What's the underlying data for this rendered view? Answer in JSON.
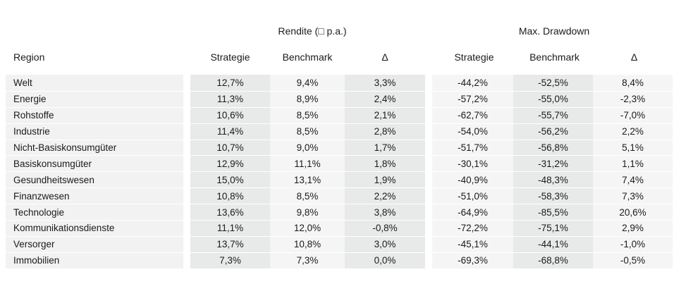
{
  "group_headers": {
    "rendite": "Rendite (□ p.a.)",
    "drawdown": "Max. Drawdown"
  },
  "column_headers": {
    "region": "Region",
    "rendite_strategie": "Strategie",
    "rendite_benchmark": "Benchmark",
    "rendite_delta": "Δ",
    "dd_strategie": "Strategie",
    "dd_benchmark": "Benchmark",
    "dd_delta": "Δ"
  },
  "rows": [
    {
      "region": "Welt",
      "r_strat": "12,7%",
      "r_bench": "9,4%",
      "r_delta": "3,3%",
      "d_strat": "-44,2%",
      "d_bench": "-52,5%",
      "d_delta": "8,4%"
    },
    {
      "region": "Energie",
      "r_strat": "11,3%",
      "r_bench": "8,9%",
      "r_delta": "2,4%",
      "d_strat": "-57,2%",
      "d_bench": "-55,0%",
      "d_delta": "-2,3%"
    },
    {
      "region": "Rohstoffe",
      "r_strat": "10,6%",
      "r_bench": "8,5%",
      "r_delta": "2,1%",
      "d_strat": "-62,7%",
      "d_bench": "-55,7%",
      "d_delta": "-7,0%"
    },
    {
      "region": "Industrie",
      "r_strat": "11,4%",
      "r_bench": "8,5%",
      "r_delta": "2,8%",
      "d_strat": "-54,0%",
      "d_bench": "-56,2%",
      "d_delta": "2,2%"
    },
    {
      "region": "Nicht-Basiskonsumgüter",
      "r_strat": "10,7%",
      "r_bench": "9,0%",
      "r_delta": "1,7%",
      "d_strat": "-51,7%",
      "d_bench": "-56,8%",
      "d_delta": "5,1%"
    },
    {
      "region": "Basiskonsumgüter",
      "r_strat": "12,9%",
      "r_bench": "11,1%",
      "r_delta": "1,8%",
      "d_strat": "-30,1%",
      "d_bench": "-31,2%",
      "d_delta": "1,1%"
    },
    {
      "region": "Gesundheitswesen",
      "r_strat": "15,0%",
      "r_bench": "13,1%",
      "r_delta": "1,9%",
      "d_strat": "-40,9%",
      "d_bench": "-48,3%",
      "d_delta": "7,4%"
    },
    {
      "region": "Finanzwesen",
      "r_strat": "10,8%",
      "r_bench": "8,5%",
      "r_delta": "2,2%",
      "d_strat": "-51,0%",
      "d_bench": "-58,3%",
      "d_delta": "7,3%"
    },
    {
      "region": "Technologie",
      "r_strat": "13,6%",
      "r_bench": "9,8%",
      "r_delta": "3,8%",
      "d_strat": "-64,9%",
      "d_bench": "-85,5%",
      "d_delta": "20,6%"
    },
    {
      "region": "Kommunikationsdienste",
      "r_strat": "11,1%",
      "r_bench": "12,0%",
      "r_delta": "-0,8%",
      "d_strat": "-72,2%",
      "d_bench": "-75,1%",
      "d_delta": "2,9%"
    },
    {
      "region": "Versorger",
      "r_strat": "13,7%",
      "r_bench": "10,8%",
      "r_delta": "3,0%",
      "d_strat": "-45,1%",
      "d_bench": "-44,1%",
      "d_delta": "-1,0%"
    },
    {
      "region": "Immobilien",
      "r_strat": "7,3%",
      "r_bench": "7,3%",
      "r_delta": "0,0%",
      "d_strat": "-69,3%",
      "d_bench": "-68,8%",
      "d_delta": "-0,5%"
    }
  ]
}
